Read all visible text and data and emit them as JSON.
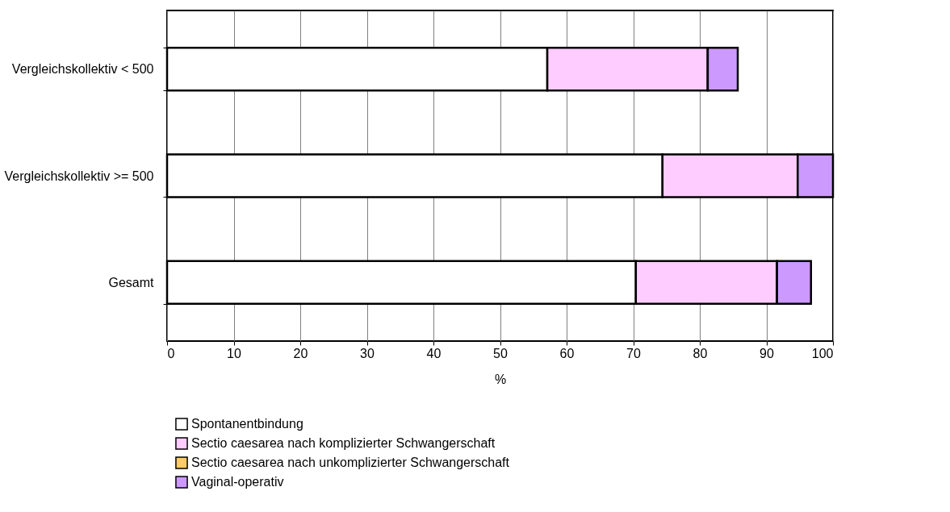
{
  "chart_data": {
    "type": "bar",
    "orientation": "horizontal",
    "stacked": true,
    "xlabel": "%",
    "categories": [
      "Vergleichskollektiv < 500",
      "Vergleichskollektiv >= 500",
      "Gesamt"
    ],
    "series": [
      {
        "name": "Spontanentbindung",
        "color": "#ffffff",
        "values": [
          57.1,
          74.4,
          70.4
        ]
      },
      {
        "name": "Sectio caesarea nach komplizierter Schwangerschaft",
        "color": "#ffccff",
        "values": [
          24.1,
          20.3,
          21.2
        ]
      },
      {
        "name": "Sectio caesarea nach unkomplizierter Schwangerschaft",
        "color": "#ffcc66",
        "values": [
          0,
          0,
          0
        ]
      },
      {
        "name": "Vaginal-operativ",
        "color": "#cc99ff",
        "values": [
          4.5,
          5.3,
          5.1
        ]
      }
    ],
    "xlim": [
      0,
      100
    ],
    "xticks": [
      0,
      10,
      20,
      30,
      40,
      50,
      60,
      70,
      80,
      90,
      100
    ],
    "grid": "x",
    "legend": "bottom"
  }
}
